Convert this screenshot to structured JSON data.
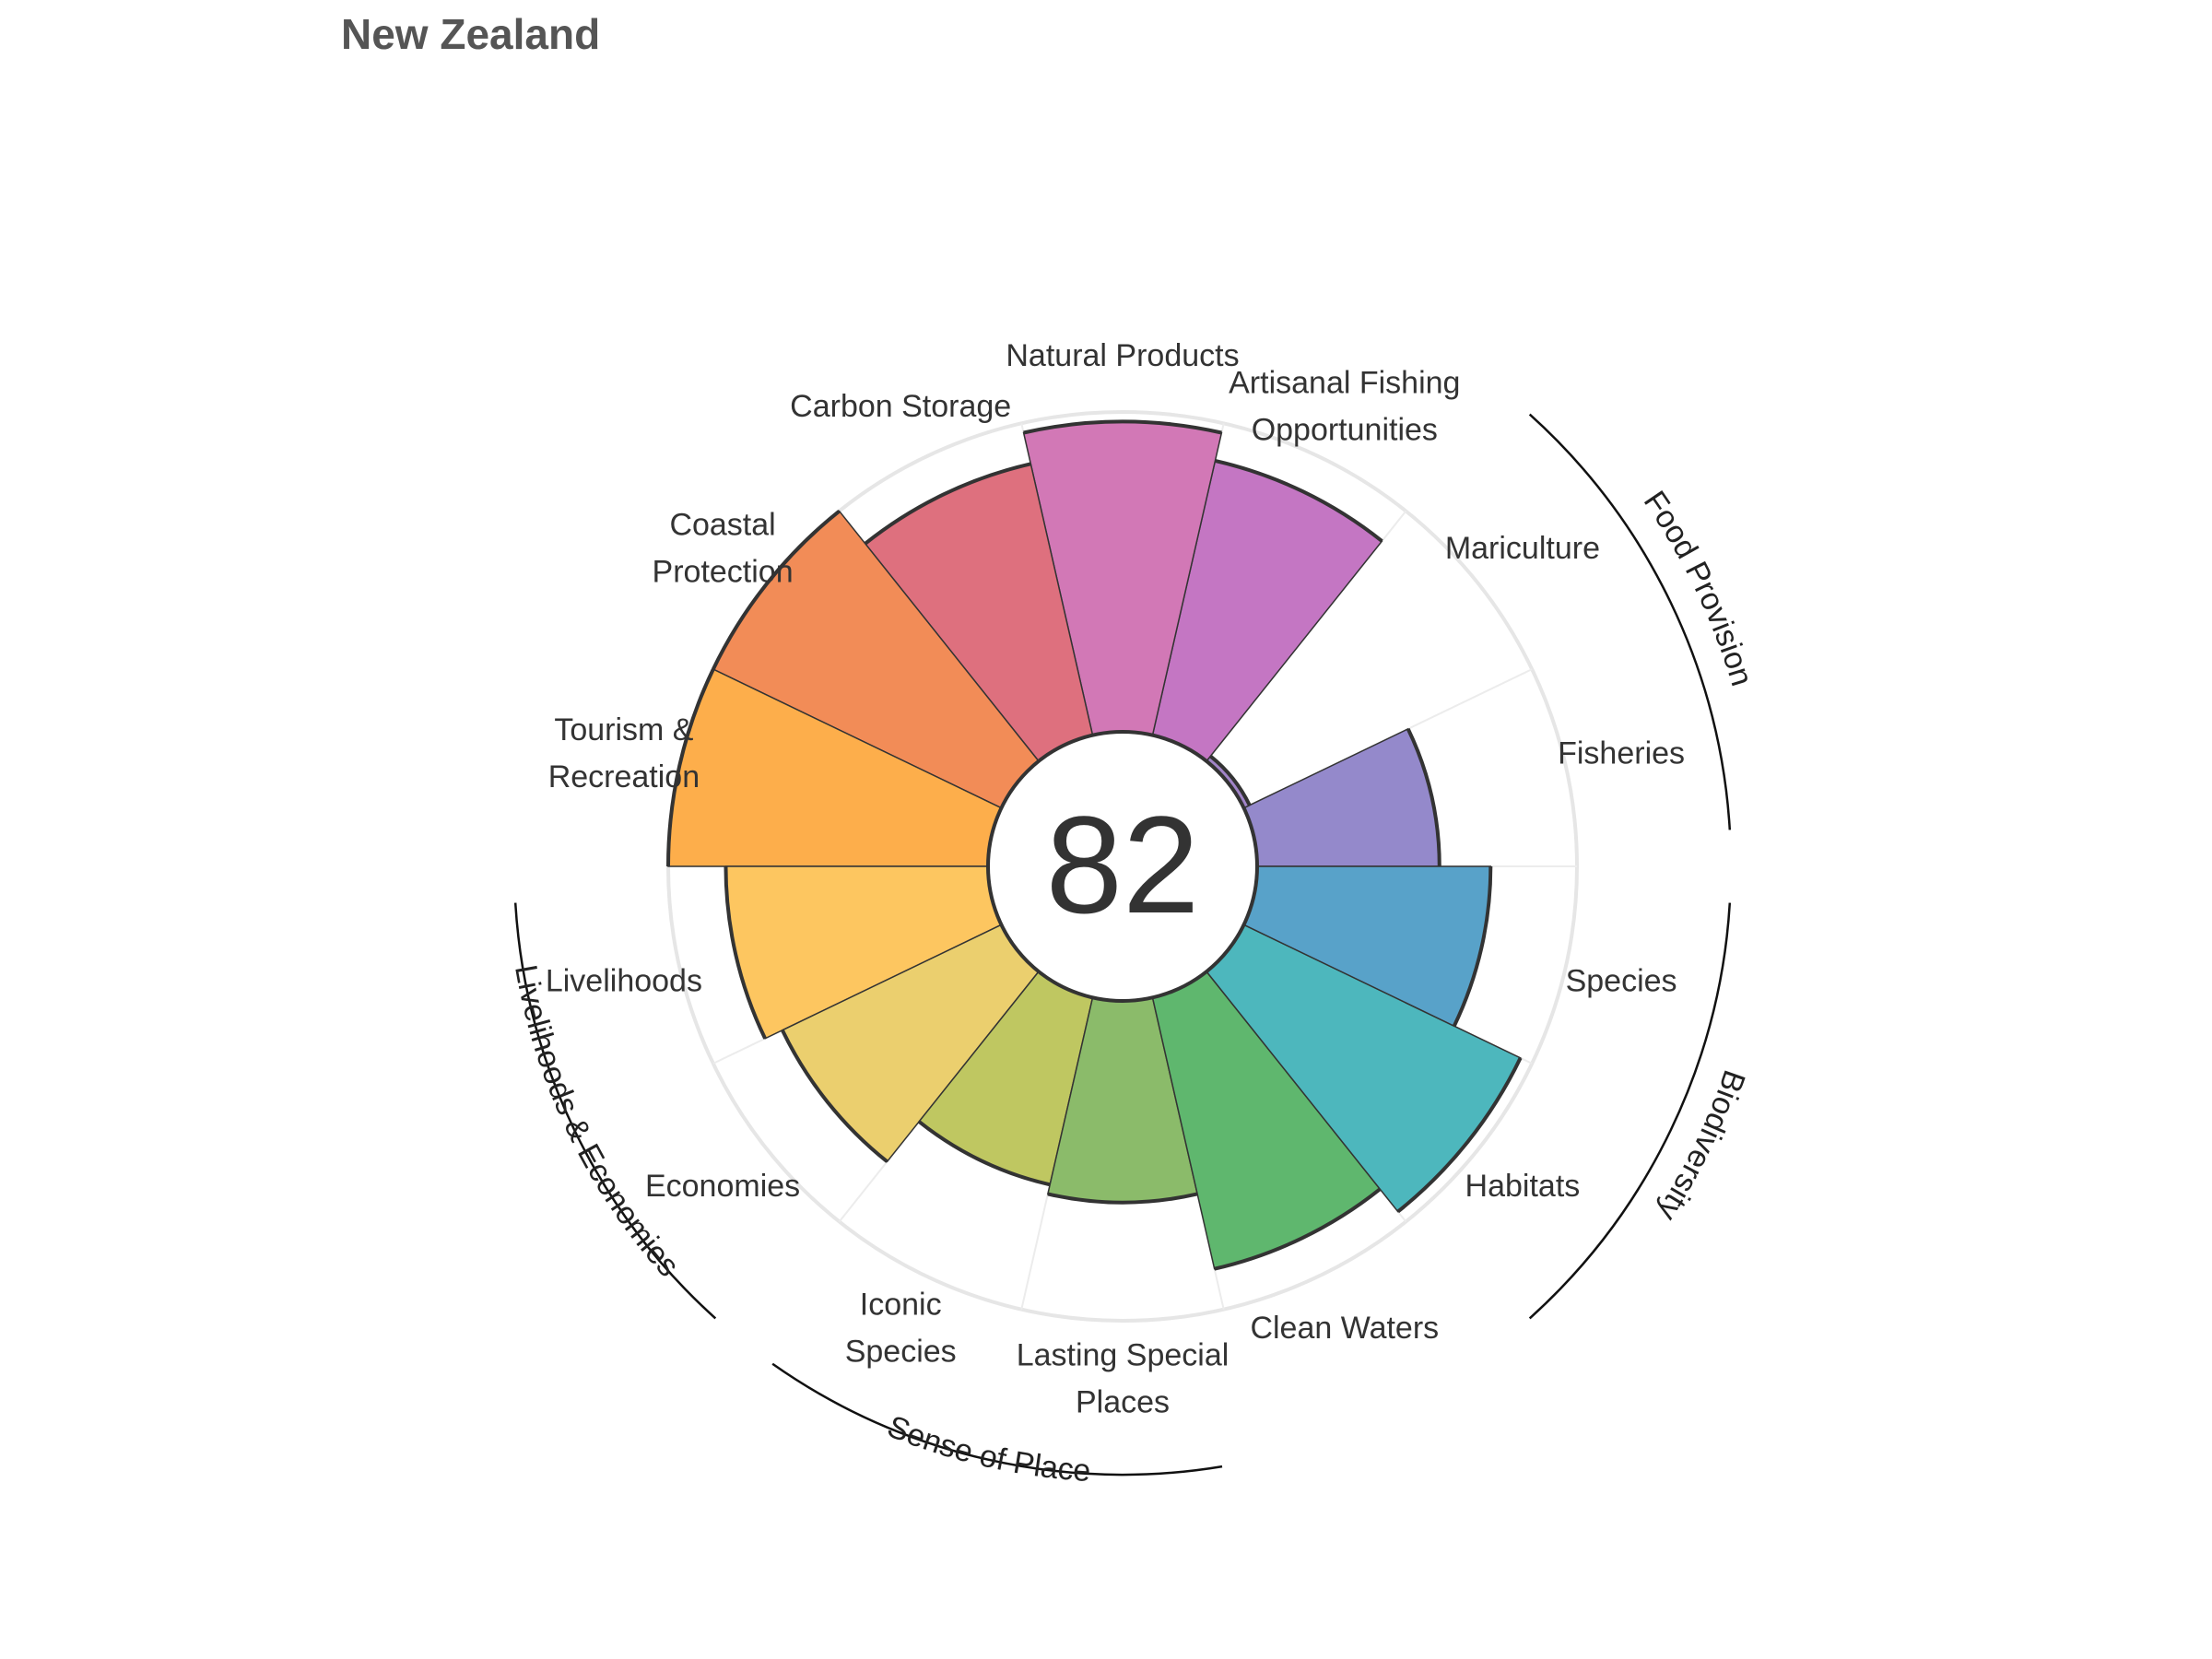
{
  "chart_data": {
    "type": "polar-bar",
    "title": "New Zealand",
    "center_value": "82",
    "ylim": [
      0,
      100
    ],
    "categories": [
      {
        "label": [
          "Fisheries"
        ],
        "value": 57,
        "color": "#9489cb"
      },
      {
        "label": [
          "Mariculture"
        ],
        "value": 2,
        "color": "#a184c8"
      },
      {
        "label": [
          "Artisanal Fishing",
          "Opportunities"
        ],
        "value": 88,
        "color": "#c476c3"
      },
      {
        "label": [
          "Natural Products"
        ],
        "value": 97,
        "color": "#d278b6"
      },
      {
        "label": [
          "Carbon Storage"
        ],
        "value": 87,
        "color": "#de707e"
      },
      {
        "label": [
          "Coastal",
          "Protection"
        ],
        "value": 100,
        "color": "#f28c57"
      },
      {
        "label": [
          "Tourism &",
          "Recreation"
        ],
        "value": 100,
        "color": "#fdae4b"
      },
      {
        "label": [
          "Livelihoods"
        ],
        "value": 82,
        "color": "#fdc660"
      },
      {
        "label": [
          "Economies"
        ],
        "value": 76,
        "color": "#ebcf6e"
      },
      {
        "label": [
          "Iconic",
          "Species"
        ],
        "value": 60,
        "color": "#bfc761"
      },
      {
        "label": [
          "Lasting Special",
          "Places"
        ],
        "value": 63,
        "color": "#8bbb6a"
      },
      {
        "label": [
          "Clean Waters"
        ],
        "value": 87,
        "color": "#5fb76e"
      },
      {
        "label": [
          "Habitats"
        ],
        "value": 96,
        "color": "#4db7bd"
      },
      {
        "label": [
          "Species"
        ],
        "value": 73,
        "color": "#58a2c9"
      }
    ],
    "groups": [
      {
        "label": "Food Provision"
      },
      {
        "label": "Biodiversity"
      },
      {
        "label": "Sense of Place"
      },
      {
        "label": "Livelihoods & Economies"
      }
    ]
  }
}
